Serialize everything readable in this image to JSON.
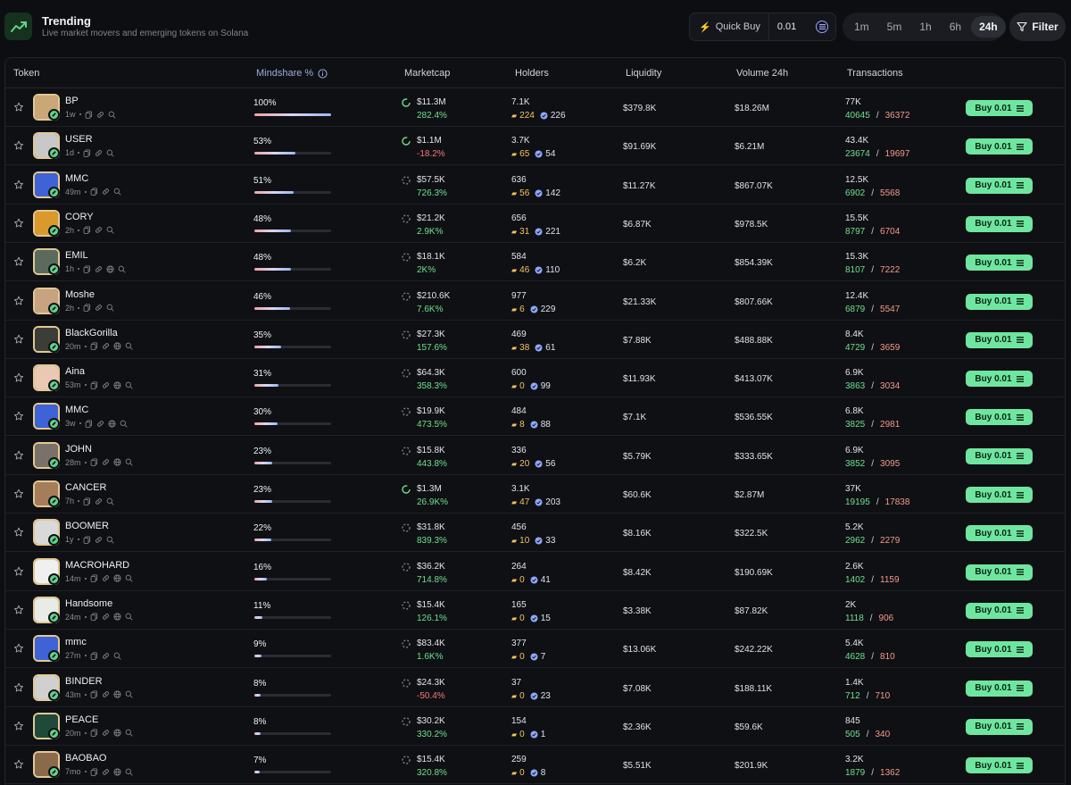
{
  "header": {
    "title": "Trending",
    "subtitle": "Live market movers and emerging tokens on Solana",
    "quick_buy_label": "Quick Buy",
    "quick_buy_value": "0.01",
    "filter_label": "Filter",
    "timeframes": [
      "1m",
      "5m",
      "1h",
      "6h",
      "24h"
    ],
    "active_timeframe": "24h"
  },
  "columns": {
    "token": "Token",
    "mindshare": "Mindshare %",
    "marketcap": "Marketcap",
    "holders": "Holders",
    "liquidity": "Liquidity",
    "volume": "Volume 24h",
    "transactions": "Transactions"
  },
  "buy_label": "Buy 0.01",
  "colors": {
    "accent": "#6fe6a0",
    "positive": "#6ee08f",
    "negative": "#f27a7a",
    "avatar_border": "#e3c891"
  },
  "rows": [
    {
      "name": "BP",
      "age": "1w",
      "globe": false,
      "mindshare": "100%",
      "mindshare_value": 100,
      "mc": "$11.3M",
      "mc_change": "282.4%",
      "mc_negative": false,
      "mc_ring": true,
      "holders": "7.1K",
      "holders_a": "224",
      "holders_b": "226",
      "liquidity": "$379.8K",
      "volume": "$18.26M",
      "tx_total": "77K",
      "tx_buys": "40645",
      "tx_sells": "36372",
      "avatar_bg": "#c9a777"
    },
    {
      "name": "USER",
      "age": "1d",
      "globe": false,
      "mindshare": "53%",
      "mindshare_value": 53,
      "mc": "$1.1M",
      "mc_change": "-18.2%",
      "mc_negative": true,
      "mc_ring": true,
      "holders": "3.7K",
      "holders_a": "65",
      "holders_b": "54",
      "liquidity": "$91.69K",
      "volume": "$6.21M",
      "tx_total": "43.4K",
      "tx_buys": "23674",
      "tx_sells": "19697",
      "avatar_bg": "#c8c8c8"
    },
    {
      "name": "MMC",
      "age": "49m",
      "globe": false,
      "mindshare": "51%",
      "mindshare_value": 51,
      "mc": "$57.5K",
      "mc_change": "726.3%",
      "mc_negative": false,
      "mc_ring": false,
      "holders": "636",
      "holders_a": "56",
      "holders_b": "142",
      "liquidity": "$11.27K",
      "volume": "$867.07K",
      "tx_total": "12.5K",
      "tx_buys": "6902",
      "tx_sells": "5568",
      "avatar_bg": "#3d63d6"
    },
    {
      "name": "CORY",
      "age": "2h",
      "globe": false,
      "mindshare": "48%",
      "mindshare_value": 48,
      "mc": "$21.2K",
      "mc_change": "2.9K%",
      "mc_negative": false,
      "mc_ring": false,
      "holders": "656",
      "holders_a": "31",
      "holders_b": "221",
      "liquidity": "$6.87K",
      "volume": "$978.5K",
      "tx_total": "15.5K",
      "tx_buys": "8797",
      "tx_sells": "6704",
      "avatar_bg": "#d99a2b"
    },
    {
      "name": "EMIL",
      "age": "1h",
      "globe": true,
      "mindshare": "48%",
      "mindshare_value": 48,
      "mc": "$18.1K",
      "mc_change": "2K%",
      "mc_negative": false,
      "mc_ring": false,
      "holders": "584",
      "holders_a": "46",
      "holders_b": "110",
      "liquidity": "$6.2K",
      "volume": "$854.39K",
      "tx_total": "15.3K",
      "tx_buys": "8107",
      "tx_sells": "7222",
      "avatar_bg": "#5a6b5e"
    },
    {
      "name": "Moshe",
      "age": "2h",
      "globe": false,
      "mindshare": "46%",
      "mindshare_value": 46,
      "mc": "$210.6K",
      "mc_change": "7.6K%",
      "mc_negative": false,
      "mc_ring": false,
      "holders": "977",
      "holders_a": "6",
      "holders_b": "229",
      "liquidity": "$21.33K",
      "volume": "$807.66K",
      "tx_total": "12.4K",
      "tx_buys": "6879",
      "tx_sells": "5547",
      "avatar_bg": "#c7a382"
    },
    {
      "name": "BlackGorilla",
      "age": "20m",
      "globe": true,
      "mindshare": "35%",
      "mindshare_value": 35,
      "mc": "$27.3K",
      "mc_change": "157.6%",
      "mc_negative": false,
      "mc_ring": false,
      "holders": "469",
      "holders_a": "38",
      "holders_b": "61",
      "liquidity": "$7.88K",
      "volume": "$488.88K",
      "tx_total": "8.4K",
      "tx_buys": "4729",
      "tx_sells": "3659",
      "avatar_bg": "#3b3d38"
    },
    {
      "name": "Aina",
      "age": "53m",
      "globe": true,
      "mindshare": "31%",
      "mindshare_value": 31,
      "mc": "$64.3K",
      "mc_change": "358.3%",
      "mc_negative": false,
      "mc_ring": false,
      "holders": "600",
      "holders_a": "0",
      "holders_b": "99",
      "liquidity": "$11.93K",
      "volume": "$413.07K",
      "tx_total": "6.9K",
      "tx_buys": "3863",
      "tx_sells": "3034",
      "avatar_bg": "#e9c9b4"
    },
    {
      "name": "MMC",
      "age": "3w",
      "globe": true,
      "mindshare": "30%",
      "mindshare_value": 30,
      "mc": "$19.9K",
      "mc_change": "473.5%",
      "mc_negative": false,
      "mc_ring": false,
      "holders": "484",
      "holders_a": "8",
      "holders_b": "88",
      "liquidity": "$7.1K",
      "volume": "$536.55K",
      "tx_total": "6.8K",
      "tx_buys": "3825",
      "tx_sells": "2981",
      "avatar_bg": "#3d63d6"
    },
    {
      "name": "JOHN",
      "age": "28m",
      "globe": true,
      "mindshare": "23%",
      "mindshare_value": 23,
      "mc": "$15.8K",
      "mc_change": "443.8%",
      "mc_negative": false,
      "mc_ring": false,
      "holders": "336",
      "holders_a": "20",
      "holders_b": "56",
      "liquidity": "$5.79K",
      "volume": "$333.65K",
      "tx_total": "6.9K",
      "tx_buys": "3852",
      "tx_sells": "3095",
      "avatar_bg": "#7a7268"
    },
    {
      "name": "CANCER",
      "age": "7h",
      "globe": false,
      "mindshare": "23%",
      "mindshare_value": 23,
      "mc": "$1.3M",
      "mc_change": "26.9K%",
      "mc_negative": false,
      "mc_ring": true,
      "holders": "3.1K",
      "holders_a": "47",
      "holders_b": "203",
      "liquidity": "$60.6K",
      "volume": "$2.87M",
      "tx_total": "37K",
      "tx_buys": "19195",
      "tx_sells": "17838",
      "avatar_bg": "#a67d5a"
    },
    {
      "name": "BOOMER",
      "age": "1y",
      "globe": false,
      "mindshare": "22%",
      "mindshare_value": 22,
      "mc": "$31.8K",
      "mc_change": "839.3%",
      "mc_negative": false,
      "mc_ring": false,
      "holders": "456",
      "holders_a": "10",
      "holders_b": "33",
      "liquidity": "$8.16K",
      "volume": "$322.5K",
      "tx_total": "5.2K",
      "tx_buys": "2962",
      "tx_sells": "2279",
      "avatar_bg": "#d9d9d9"
    },
    {
      "name": "MACROHARD",
      "age": "14m",
      "globe": true,
      "mindshare": "16%",
      "mindshare_value": 16,
      "mc": "$36.2K",
      "mc_change": "714.8%",
      "mc_negative": false,
      "mc_ring": false,
      "holders": "264",
      "holders_a": "0",
      "holders_b": "41",
      "liquidity": "$8.42K",
      "volume": "$190.69K",
      "tx_total": "2.6K",
      "tx_buys": "1402",
      "tx_sells": "1159",
      "avatar_bg": "#f0f0f0"
    },
    {
      "name": "Handsome",
      "age": "24m",
      "globe": true,
      "mindshare": "11%",
      "mindshare_value": 11,
      "mc": "$15.4K",
      "mc_change": "126.1%",
      "mc_negative": false,
      "mc_ring": false,
      "holders": "165",
      "holders_a": "0",
      "holders_b": "15",
      "liquidity": "$3.38K",
      "volume": "$87.82K",
      "tx_total": "2K",
      "tx_buys": "1118",
      "tx_sells": "906",
      "avatar_bg": "#e8ece6"
    },
    {
      "name": "mmc",
      "age": "27m",
      "globe": false,
      "mindshare": "9%",
      "mindshare_value": 9,
      "mc": "$83.4K",
      "mc_change": "1.6K%",
      "mc_negative": false,
      "mc_ring": false,
      "holders": "377",
      "holders_a": "0",
      "holders_b": "7",
      "liquidity": "$13.06K",
      "volume": "$242.22K",
      "tx_total": "5.4K",
      "tx_buys": "4628",
      "tx_sells": "810",
      "avatar_bg": "#3d63d6"
    },
    {
      "name": "BINDER",
      "age": "43m",
      "globe": true,
      "mindshare": "8%",
      "mindshare_value": 8,
      "mc": "$24.3K",
      "mc_change": "-50.4%",
      "mc_negative": true,
      "mc_ring": false,
      "holders": "37",
      "holders_a": "0",
      "holders_b": "23",
      "liquidity": "$7.08K",
      "volume": "$188.11K",
      "tx_total": "1.4K",
      "tx_buys": "712",
      "tx_sells": "710",
      "avatar_bg": "#d0d0d0"
    },
    {
      "name": "PEACE",
      "age": "20m",
      "globe": true,
      "mindshare": "8%",
      "mindshare_value": 8,
      "mc": "$30.2K",
      "mc_change": "330.2%",
      "mc_negative": false,
      "mc_ring": false,
      "holders": "154",
      "holders_a": "0",
      "holders_b": "1",
      "liquidity": "$2.36K",
      "volume": "$59.6K",
      "tx_total": "845",
      "tx_buys": "505",
      "tx_sells": "340",
      "avatar_bg": "#1f4a3a"
    },
    {
      "name": "BAOBAO",
      "age": "7mo",
      "globe": true,
      "mindshare": "7%",
      "mindshare_value": 7,
      "mc": "$15.4K",
      "mc_change": "320.8%",
      "mc_negative": false,
      "mc_ring": false,
      "holders": "259",
      "holders_a": "0",
      "holders_b": "8",
      "liquidity": "$5.51K",
      "volume": "$201.9K",
      "tx_total": "3.2K",
      "tx_buys": "1879",
      "tx_sells": "1362",
      "avatar_bg": "#8a6a4a"
    }
  ]
}
